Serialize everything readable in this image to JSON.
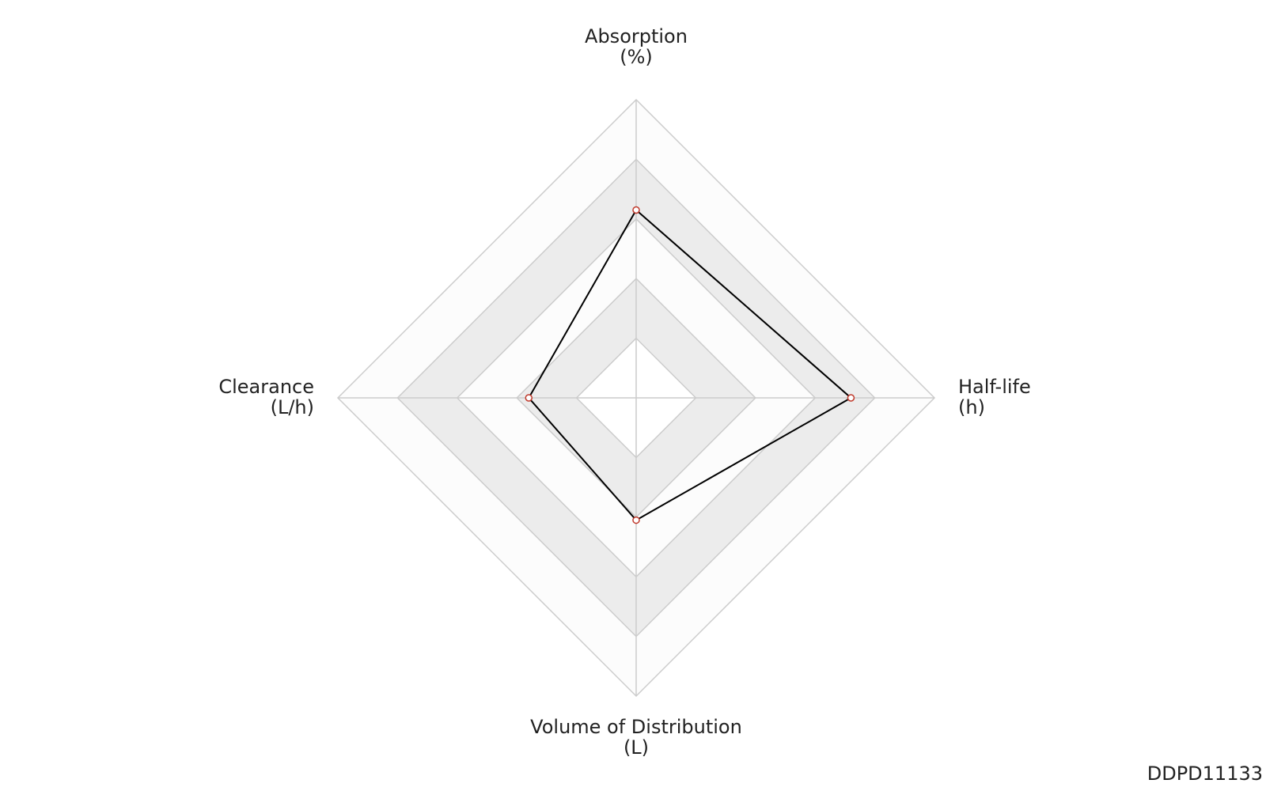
{
  "chart_data": {
    "type": "radar",
    "categories": [
      [
        "Absorption",
        "(%)"
      ],
      [
        "Half-life",
        "(h)"
      ],
      [
        "Volume of Distribution",
        "(L)"
      ],
      [
        "Clearance",
        "(L/h)"
      ]
    ],
    "values": [
      0.63,
      0.72,
      0.41,
      0.36
    ],
    "rlim": [
      0,
      1
    ],
    "rticks": [
      0.2,
      0.4,
      0.6,
      0.8,
      1.0
    ],
    "color": "#000000",
    "marker_color": "#c0392b",
    "band_colors": [
      "#ffffff",
      "#ececec",
      "#fcfcfc",
      "#ececec",
      "#fcfcfc"
    ],
    "grid": true
  },
  "watermark": "DDPD11133"
}
